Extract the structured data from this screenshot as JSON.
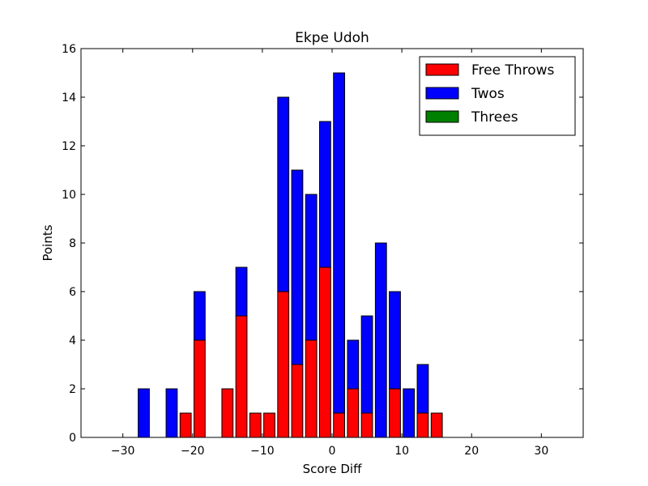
{
  "chart_data": {
    "type": "bar",
    "stacked": true,
    "title": "Ekpe Udoh",
    "xlabel": "Score Diff",
    "ylabel": "Points",
    "xlim": [
      -36,
      36
    ],
    "ylim": [
      0,
      16
    ],
    "x_ticks": [
      -30,
      -20,
      -10,
      0,
      10,
      20,
      30
    ],
    "x_tick_labels": [
      "−30",
      "−20",
      "−10",
      "0",
      "10",
      "20",
      "30"
    ],
    "y_ticks": [
      0,
      2,
      4,
      6,
      8,
      10,
      12,
      14,
      16
    ],
    "y_tick_labels": [
      "0",
      "2",
      "4",
      "6",
      "8",
      "10",
      "12",
      "14",
      "16"
    ],
    "bar_width": 1.6,
    "x": [
      -35,
      -33,
      -31,
      -29,
      -27,
      -25,
      -23,
      -21,
      -19,
      -17,
      -15,
      -13,
      -11,
      -9,
      -7,
      -5,
      -3,
      -1,
      1,
      3,
      5,
      7,
      9,
      11,
      13,
      15,
      17,
      19,
      21,
      23,
      25,
      27,
      29,
      31,
      33,
      35
    ],
    "series": [
      {
        "name": "Free Throws",
        "color": "#ff0000",
        "values": [
          0,
          0,
          0,
          0,
          0,
          0,
          0,
          1,
          4,
          0,
          2,
          5,
          1,
          1,
          6,
          3,
          4,
          7,
          1,
          2,
          1,
          0,
          2,
          0,
          1,
          1,
          0,
          0,
          0,
          0,
          0,
          0,
          0,
          0,
          0,
          0
        ]
      },
      {
        "name": "Twos",
        "color": "#0000ff",
        "values": [
          0,
          0,
          0,
          0,
          2,
          0,
          2,
          0,
          2,
          0,
          0,
          2,
          0,
          0,
          8,
          8,
          6,
          6,
          14,
          2,
          4,
          8,
          4,
          2,
          2,
          0,
          0,
          0,
          0,
          0,
          0,
          0,
          0,
          0,
          0,
          0
        ]
      },
      {
        "name": "Threes",
        "color": "#008000",
        "values": [
          0,
          0,
          0,
          0,
          0,
          0,
          0,
          0,
          0,
          0,
          0,
          0,
          0,
          0,
          0,
          0,
          0,
          0,
          0,
          0,
          0,
          0,
          0,
          0,
          0,
          0,
          0,
          0,
          0,
          0,
          0,
          0,
          0,
          0,
          0,
          0
        ]
      }
    ],
    "legend_position": "top-right",
    "grid": false
  }
}
